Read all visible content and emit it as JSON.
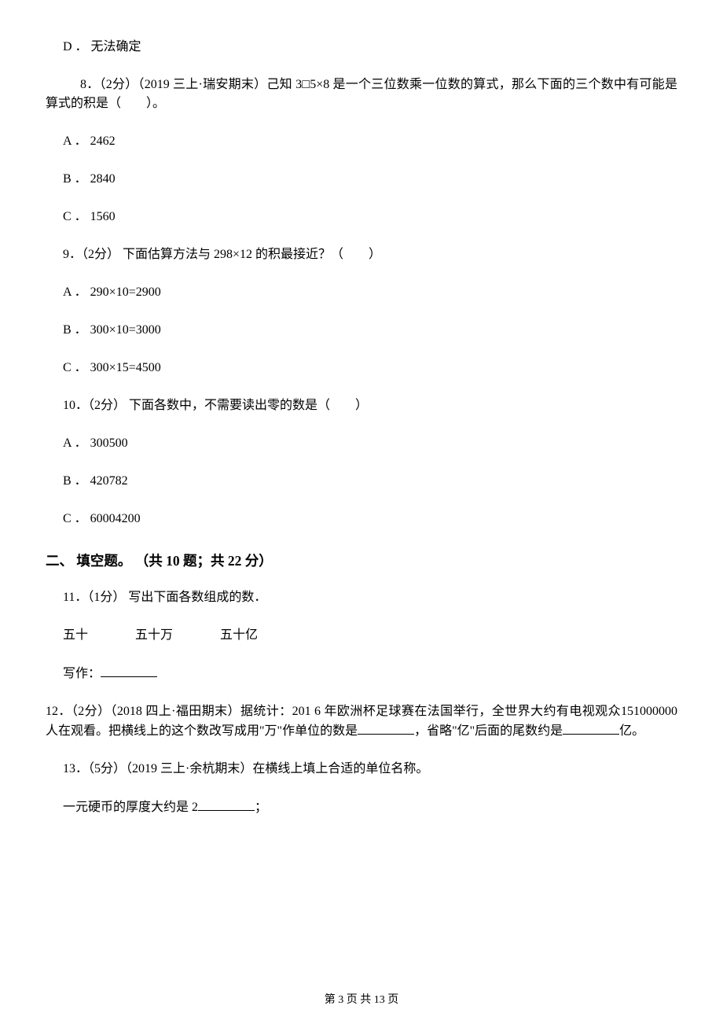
{
  "q7": {
    "option_d": "D ． 无法确定"
  },
  "q8": {
    "text": "8．（2分）（2019 三上·瑞安期末）己知 3□5×8 是一个三位数乘一位数的算式，那么下面的三个数中有可能是算式的积是（　　）。",
    "option_a": "A ． 2462",
    "option_b": "B ． 2840",
    "option_c": "C ． 1560"
  },
  "q9": {
    "text": "9．（2分） 下面估算方法与 298×12 的积最接近？（　　）",
    "option_a": "A ． 290×10=2900",
    "option_b": "B ． 300×10=3000",
    "option_c": "C ． 300×15=4500"
  },
  "q10": {
    "text": "10．（2分） 下面各数中，不需要读出零的数是（　　）",
    "option_a": "A ． 300500",
    "option_b": "B ． 420782",
    "option_c": "C ． 60004200"
  },
  "section2_heading": "二、 填空题。 （共 10 题；共 22 分）",
  "q11": {
    "text": "11．（1分） 写出下面各数组成的数．",
    "words": {
      "a": "五十",
      "b": "五十万",
      "c": "五十亿"
    },
    "write_label": "写作："
  },
  "q12": {
    "prefix": "12．（2分）（2018 四上·福田期末）据统计：201 6 年欧洲杯足球赛在法国举行，全世界大约有电视观众151000000 人在观看。把横线上的这个数改写成用\"万\"作单位的数是",
    "mid": "，省略\"亿\"后面的尾数约是",
    "suffix": "亿。"
  },
  "q13": {
    "text": "13．（5分）（2019 三上·余杭期末）在横线上填上合适的单位名称。",
    "line1_prefix": "一元硬币的厚度大约是 2",
    "line1_suffix": "；"
  },
  "footer": "第 3 页 共 13 页"
}
